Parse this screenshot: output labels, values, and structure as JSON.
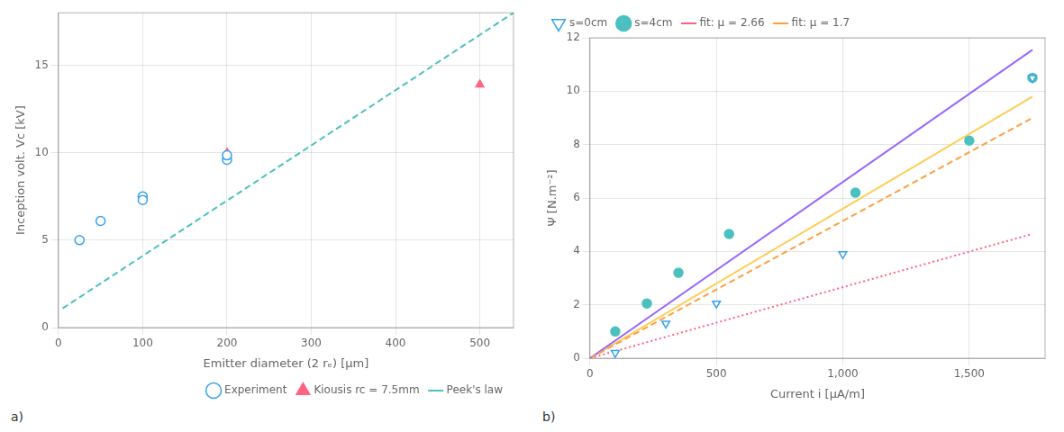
{
  "chart_data": [
    {
      "type": "scatter",
      "xlabel": "Emitter diameter (2 rₑ) [μm]",
      "ylabel": "Inception volt. Vc [kV]",
      "annotation": "a)",
      "xlim": [
        0,
        540
      ],
      "ylim": [
        0,
        18
      ],
      "xticks": [
        0,
        100,
        200,
        300,
        400,
        500
      ],
      "yticks": [
        0,
        5,
        10,
        15
      ],
      "grid": true,
      "legend": "lower right",
      "series": [
        {
          "name": "Experiment",
          "type": "scatter",
          "marker": "open_circle",
          "x": [
            25,
            50,
            100,
            100,
            200,
            200
          ],
          "values": [
            5.0,
            6.1,
            7.5,
            7.3,
            9.6,
            9.85
          ]
        },
        {
          "name": "Kiousis rc = 7.5mm",
          "type": "scatter",
          "marker": "triangle",
          "x": [
            100,
            200,
            500
          ],
          "values": [
            7.35,
            10.0,
            13.9
          ]
        },
        {
          "name": "Peek's law",
          "type": "line",
          "line_style": "dashed",
          "x": [
            5,
            540
          ],
          "values": [
            1.1,
            18.0
          ]
        }
      ]
    },
    {
      "type": "scatter",
      "xlabel": "Current i [μA/m]",
      "ylabel": "Ψ [N.m⁻²]",
      "annotation": "b)",
      "xlim": [
        0,
        1800
      ],
      "ylim": [
        0,
        12
      ],
      "xticks": [
        0,
        500,
        {
          "value": 1000,
          "label": "1,000"
        },
        {
          "value": 1500,
          "label": "1,500"
        }
      ],
      "yticks": [
        0,
        2,
        4,
        6,
        8,
        10,
        12
      ],
      "grid": true,
      "legend": "upper left",
      "series": [
        {
          "name": "s=0cm",
          "type": "scatter",
          "marker": "open_triangle_down",
          "x": [
            100,
            300,
            500,
            1000,
            1750
          ],
          "values": [
            0.2,
            1.3,
            2.05,
            3.9,
            10.5
          ]
        },
        {
          "name": "fit: μ = 2.66",
          "type": "line",
          "line_style": "dotted",
          "x": [
            0,
            1750
          ],
          "values": [
            0.0,
            4.655
          ]
        },
        {
          "name": "s=4cm",
          "type": "scatter",
          "marker": "circle",
          "x": [
            100,
            225,
            350,
            550,
            1050,
            1500,
            1750
          ],
          "values": [
            1.0,
            2.05,
            3.2,
            4.65,
            6.2,
            8.15,
            10.5
          ]
        },
        {
          "name": "fit: μ = 1.7",
          "type": "line",
          "line_style": "dashed",
          "x": [
            0,
            1750
          ],
          "values": [
            0.0,
            9.0
          ]
        },
        {
          "type": "line",
          "line_style": "solid",
          "x": [
            0,
            1750
          ],
          "values": [
            0.0,
            11.55
          ]
        },
        {
          "type": "line",
          "line_style": "solid",
          "x": [
            0,
            1750
          ],
          "values": [
            0.0,
            9.8
          ]
        }
      ]
    }
  ]
}
